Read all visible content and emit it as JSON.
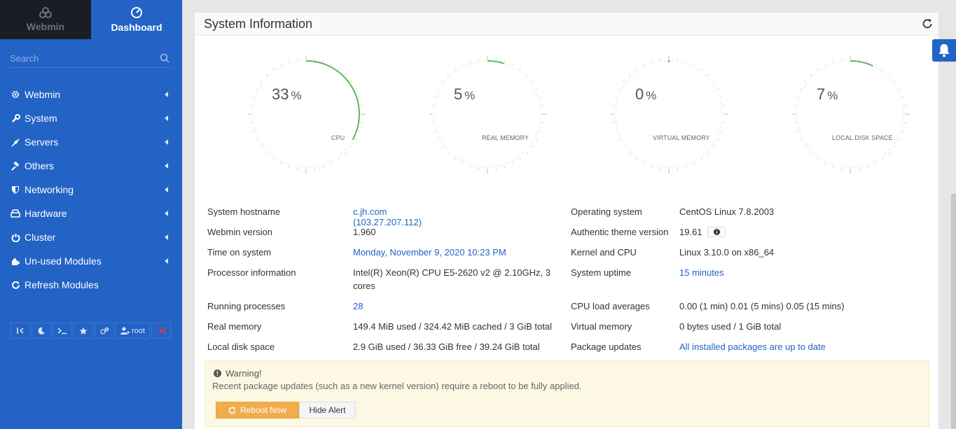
{
  "sidebar": {
    "switch": {
      "webmin_label": "Webmin",
      "dashboard_label": "Dashboard"
    },
    "search": {
      "placeholder": "Search"
    },
    "items": [
      {
        "label": "Webmin",
        "icon": "gear-icon"
      },
      {
        "label": "System",
        "icon": "wrench-icon"
      },
      {
        "label": "Servers",
        "icon": "rocket-icon"
      },
      {
        "label": "Others",
        "icon": "gavel-icon"
      },
      {
        "label": "Networking",
        "icon": "shield-icon"
      },
      {
        "label": "Hardware",
        "icon": "hdd-icon"
      },
      {
        "label": "Cluster",
        "icon": "power-icon"
      },
      {
        "label": "Un-used Modules",
        "icon": "puzzle-icon"
      },
      {
        "label": "Refresh Modules",
        "icon": "refresh-icon"
      }
    ],
    "bottom": {
      "user_label": "root"
    }
  },
  "panel": {
    "title": "System Information"
  },
  "gauges": [
    {
      "value": "33",
      "unit": "%",
      "label": "CPU",
      "fraction": 0.33
    },
    {
      "value": "5",
      "unit": "%",
      "label": "REAL MEMORY",
      "fraction": 0.05
    },
    {
      "value": "0",
      "unit": "%",
      "label": "VIRTUAL MEMORY",
      "fraction": 0.0
    },
    {
      "value": "7",
      "unit": "%",
      "label": "LOCAL DISK SPACE",
      "fraction": 0.07
    }
  ],
  "info_left": [
    {
      "label": "System hostname",
      "value": "c.jh.com (103.27.207.112)"
    },
    {
      "label": "Webmin version",
      "value": "1.960"
    },
    {
      "label": "Time on system",
      "value": "Monday, November 9, 2020 10:23 PM"
    },
    {
      "label": "Processor information",
      "value": "Intel(R) Xeon(R) CPU E5-2620 v2 @ 2.10GHz, 3",
      "value2": "cores"
    },
    {
      "label": "Running processes",
      "value": "28"
    },
    {
      "label": "Real memory",
      "value": "149.4 MiB used / 324.42 MiB cached / 3 GiB total"
    },
    {
      "label": "Local disk space",
      "value": "2.9 GiB used / 36.33 GiB free / 39.24 GiB total"
    }
  ],
  "info_right": [
    {
      "label": "Operating system",
      "value": "CentOS Linux 7.8.2003"
    },
    {
      "label": "Authentic theme version",
      "value": "19.61"
    },
    {
      "label": "Kernel and CPU",
      "value": "Linux 3.10.0 on x86_64"
    },
    {
      "label": "System uptime",
      "value": "15 minutes"
    },
    {
      "label": "CPU load averages",
      "value": "0.00 (1 min) 0.01 (5 mins) 0.05 (15 mins)"
    },
    {
      "label": "Virtual memory",
      "value": "0 bytes used / 1 GiB total"
    },
    {
      "label": "Package updates",
      "value": "All installed packages are up to date"
    }
  ],
  "warning": {
    "title": "Warning!",
    "text": "Recent package updates (such as a new kernel version) require a reboot to be fully applied.",
    "reboot_label": "Reboot Now",
    "hide_label": "Hide Alert"
  },
  "colors": {
    "sidebar": "#2263c5",
    "gauge_fill": "#5cb85c",
    "link": "#2263c5",
    "warning_button": "#f0ad4e"
  }
}
